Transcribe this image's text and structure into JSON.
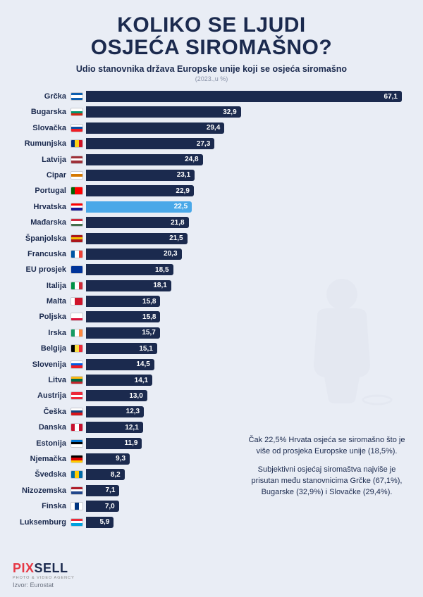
{
  "title_line1": "KOLIKO SE LJUDI",
  "title_line2": "OSJEĆA SIROMAŠNO?",
  "subtitle": "Udio stanovnika država Europske unije koji se osjeća siromašno",
  "subnote": "(2023.,u %)",
  "chart": {
    "type": "bar-horizontal",
    "max_value": 67.1,
    "bar_color_default": "#1b2a4e",
    "bar_color_highlight": "#4aa8e8",
    "value_color": "#ffffff",
    "label_color": "#1b2a4e",
    "rows": [
      {
        "label": "Grčka",
        "value": 67.1,
        "display": "67,1",
        "flag": [
          "#0d5eaf",
          "#ffffff",
          "#0d5eaf"
        ],
        "dir": "h"
      },
      {
        "label": "Bugarska",
        "value": 32.9,
        "display": "32,9",
        "flag": [
          "#ffffff",
          "#00966e",
          "#d62612"
        ],
        "dir": "h"
      },
      {
        "label": "Slovačka",
        "value": 29.4,
        "display": "29,4",
        "flag": [
          "#ffffff",
          "#0b4ea2",
          "#ee1c25"
        ],
        "dir": "h"
      },
      {
        "label": "Rumunjska",
        "value": 27.3,
        "display": "27,3",
        "flag": [
          "#002b7f",
          "#fcd116",
          "#ce1126"
        ],
        "dir": "v"
      },
      {
        "label": "Latvija",
        "value": 24.8,
        "display": "24,8",
        "flag": [
          "#9e3039",
          "#ffffff",
          "#9e3039"
        ],
        "dir": "h"
      },
      {
        "label": "Cipar",
        "value": 23.1,
        "display": "23,1",
        "flag": [
          "#ffffff",
          "#d57800",
          "#ffffff"
        ],
        "dir": "h"
      },
      {
        "label": "Portugal",
        "value": 22.9,
        "display": "22,9",
        "flag": [
          "#006600",
          "#ff0000",
          "#ff0000"
        ],
        "dir": "v"
      },
      {
        "label": "Hrvatska",
        "value": 22.5,
        "display": "22,5",
        "flag": [
          "#ff0000",
          "#ffffff",
          "#171796"
        ],
        "dir": "h",
        "highlight": true
      },
      {
        "label": "Mađarska",
        "value": 21.8,
        "display": "21,8",
        "flag": [
          "#cd2a3e",
          "#ffffff",
          "#436f4d"
        ],
        "dir": "h"
      },
      {
        "label": "Španjolska",
        "value": 21.5,
        "display": "21,5",
        "flag": [
          "#aa151b",
          "#f1bf00",
          "#aa151b"
        ],
        "dir": "h"
      },
      {
        "label": "Francuska",
        "value": 20.3,
        "display": "20,3",
        "flag": [
          "#0055a4",
          "#ffffff",
          "#ef4135"
        ],
        "dir": "v"
      },
      {
        "label": "EU prosjek",
        "value": 18.5,
        "display": "18,5",
        "flag": [
          "#003399",
          "#003399",
          "#003399"
        ],
        "dir": "h"
      },
      {
        "label": "Italija",
        "value": 18.1,
        "display": "18,1",
        "flag": [
          "#009246",
          "#ffffff",
          "#ce2b37"
        ],
        "dir": "v"
      },
      {
        "label": "Malta",
        "value": 15.8,
        "display": "15,8",
        "flag": [
          "#ffffff",
          "#cf142b",
          "#cf142b"
        ],
        "dir": "v"
      },
      {
        "label": "Poljska",
        "value": 15.8,
        "display": "15,8",
        "flag": [
          "#ffffff",
          "#ffffff",
          "#dc143c"
        ],
        "dir": "h"
      },
      {
        "label": "Irska",
        "value": 15.7,
        "display": "15,7",
        "flag": [
          "#169b62",
          "#ffffff",
          "#ff883e"
        ],
        "dir": "v"
      },
      {
        "label": "Belgija",
        "value": 15.1,
        "display": "15,1",
        "flag": [
          "#000000",
          "#fae042",
          "#ed2939"
        ],
        "dir": "v"
      },
      {
        "label": "Slovenija",
        "value": 14.5,
        "display": "14,5",
        "flag": [
          "#ffffff",
          "#005ce5",
          "#ed1c24"
        ],
        "dir": "h"
      },
      {
        "label": "Litva",
        "value": 14.1,
        "display": "14,1",
        "flag": [
          "#fdb913",
          "#006a44",
          "#c1272d"
        ],
        "dir": "h"
      },
      {
        "label": "Austrija",
        "value": 13.0,
        "display": "13,0",
        "flag": [
          "#ed2939",
          "#ffffff",
          "#ed2939"
        ],
        "dir": "h"
      },
      {
        "label": "Češka",
        "value": 12.3,
        "display": "12,3",
        "flag": [
          "#ffffff",
          "#11457e",
          "#d7141a"
        ],
        "dir": "h"
      },
      {
        "label": "Danska",
        "value": 12.1,
        "display": "12,1",
        "flag": [
          "#c8102e",
          "#ffffff",
          "#c8102e"
        ],
        "dir": "v"
      },
      {
        "label": "Estonija",
        "value": 11.9,
        "display": "11,9",
        "flag": [
          "#0072ce",
          "#000000",
          "#ffffff"
        ],
        "dir": "h"
      },
      {
        "label": "Njemačka",
        "value": 9.3,
        "display": "9,3",
        "flag": [
          "#000000",
          "#dd0000",
          "#ffce00"
        ],
        "dir": "h"
      },
      {
        "label": "Švedska",
        "value": 8.2,
        "display": "8,2",
        "flag": [
          "#006aa7",
          "#fecc00",
          "#006aa7"
        ],
        "dir": "v"
      },
      {
        "label": "Nizozemska",
        "value": 7.1,
        "display": "7,1",
        "flag": [
          "#ae1c28",
          "#ffffff",
          "#21468b"
        ],
        "dir": "h"
      },
      {
        "label": "Finska",
        "value": 7.0,
        "display": "7,0",
        "flag": [
          "#ffffff",
          "#003580",
          "#ffffff"
        ],
        "dir": "v"
      },
      {
        "label": "Luksemburg",
        "value": 5.9,
        "display": "5,9",
        "flag": [
          "#ed2939",
          "#ffffff",
          "#00a1de"
        ],
        "dir": "h"
      }
    ]
  },
  "callout": {
    "p1": "Čak 22,5% Hrvata osjeća se siromašno što je više od prosjeka Europske unije (18,5%).",
    "p2": "Subjektivni osjećaj siromaštva najviše je prisutan među stanovnicima Grčke (67,1%), Bugarske (32,9%) i Slovačke (29,4%)."
  },
  "logo": {
    "p1": "PIX",
    "p2": "SELL",
    "sub": "PHOTO & VIDEO AGENCY"
  },
  "source": "Izvor: Eurostat"
}
